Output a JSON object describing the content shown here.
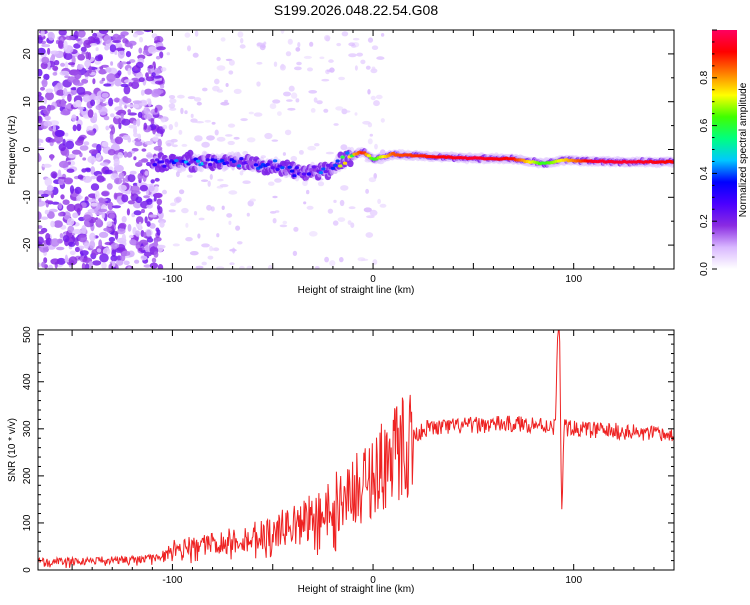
{
  "chart_data": [
    {
      "type": "heatmap",
      "title": "S199.2026.048.22.54.G08",
      "xlabel": "Height of straight line (km)",
      "ylabel": "Frequency (Hz)",
      "xlim": [
        -167,
        150
      ],
      "ylim": [
        -25,
        25
      ],
      "xticks": [
        "-100",
        "0",
        "100"
      ],
      "yticks": [
        "-20",
        "-10",
        "0",
        "10",
        "20"
      ],
      "colorbar": {
        "label": "Normalized spectral amplitude",
        "range": [
          0,
          1
        ],
        "ticks": [
          "0.0",
          "0.2",
          "0.4",
          "0.6",
          "0.8"
        ],
        "colors": [
          "#ffffff",
          "#d9b8ff",
          "#8a2be2",
          "#4b00ff",
          "#0000ff",
          "#00c8ff",
          "#00ff80",
          "#40ff00",
          "#ffff00",
          "#ff8000",
          "#ff0000",
          "#ff0060"
        ]
      },
      "ridge": {
        "x": [
          -110,
          -90,
          -70,
          -50,
          -35,
          -20,
          -12,
          -5,
          0,
          10,
          30,
          50,
          70,
          85,
          95,
          110,
          130,
          150
        ],
        "frequency": [
          -3.0,
          -2.5,
          -2.5,
          -3.5,
          -5.0,
          -3.5,
          -1.5,
          -0.5,
          -2.0,
          -1.0,
          -1.5,
          -1.8,
          -2.0,
          -3.0,
          -2.2,
          -2.5,
          -2.6,
          -2.6
        ],
        "amplitude": [
          0.3,
          0.35,
          0.3,
          0.3,
          0.25,
          0.4,
          0.7,
          0.9,
          0.6,
          0.85,
          0.9,
          0.95,
          0.9,
          0.6,
          0.75,
          0.95,
          0.95,
          0.9
        ]
      }
    },
    {
      "type": "line",
      "xlabel": "Height of straight line (km)",
      "ylabel": "SNR (10 * v/v)",
      "xlim": [
        -167,
        150
      ],
      "ylim": [
        0,
        510
      ],
      "xticks": [
        "-100",
        "0",
        "100"
      ],
      "yticks": [
        "0",
        "100",
        "200",
        "300",
        "400",
        "500"
      ],
      "color": "#ee2222",
      "trend": {
        "x": [
          -167,
          -120,
          -105,
          -100,
          -80,
          -60,
          -40,
          -20,
          -5,
          5,
          15,
          25,
          40,
          60,
          80,
          90,
          100,
          120,
          150
        ],
        "snr": [
          18,
          22,
          28,
          45,
          55,
          70,
          95,
          140,
          180,
          225,
          265,
          300,
          305,
          310,
          310,
          305,
          300,
          295,
          285
        ]
      },
      "spike": {
        "x": [
          91,
          92,
          93,
          94,
          95
        ],
        "snr": [
          330,
          480,
          510,
          100,
          280
        ]
      }
    }
  ]
}
